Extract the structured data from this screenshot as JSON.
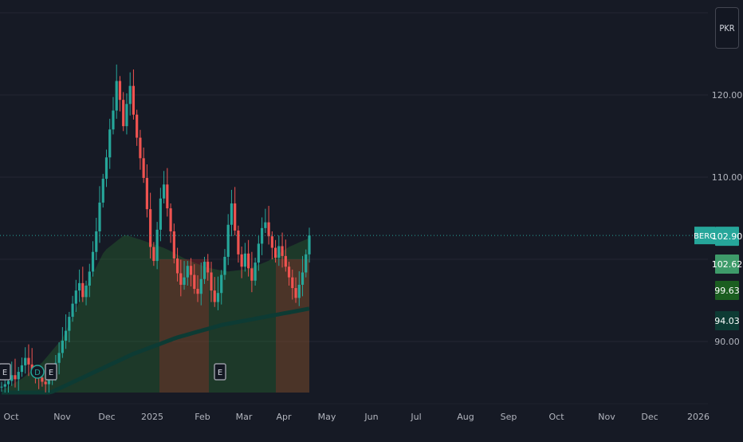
{
  "currency_button": "PKR",
  "colors": {
    "background": "#161a25",
    "grid": "#242733",
    "up": "#26a69a",
    "down": "#ef5350",
    "price_line": "#26a69a",
    "fast_ma": "#2e7d32",
    "slow_ma": "#0d3b34",
    "cloud_bull": "#2e7d32",
    "cloud_bear": "#c62828"
  },
  "price_labels": [
    {
      "name": "ticker",
      "text": "BERG",
      "bg": "#26a69a",
      "color": "#ffffff"
    },
    {
      "name": "last-price",
      "text": "102.90",
      "bg": "#26a69a",
      "color": "#ffffff",
      "value": 102.9
    },
    {
      "name": "fast-ma-value",
      "text": "102.62",
      "bg": "#3e9b6a",
      "color": "#ffffff",
      "value": 102.62
    },
    {
      "name": "mid-ma-value",
      "text": "99.63",
      "bg": "#1b5e20",
      "color": "#ffffff",
      "value": 99.63
    },
    {
      "name": "slow-ma-value",
      "text": "94.03",
      "bg": "#0d3b34",
      "color": "#ffffff",
      "value": 94.03
    }
  ],
  "event_markers": [
    {
      "label": "E",
      "month": "Oct",
      "shape": "square"
    },
    {
      "label": "D",
      "month": "Oct",
      "shape": "circle"
    },
    {
      "label": "E",
      "month": "Oct",
      "shape": "square"
    },
    {
      "label": "E",
      "month": "Feb",
      "shape": "square"
    }
  ],
  "chart_data": {
    "type": "candlestick",
    "y_axis": {
      "ticks": [
        "120.00",
        "110.00",
        "90.00"
      ],
      "range": [
        84,
        128
      ],
      "grid_values": [
        130,
        120,
        110,
        100,
        90
      ]
    },
    "x_axis": {
      "labels": [
        "Oct",
        "Nov",
        "Dec",
        "2025",
        "Feb",
        "Mar",
        "Apr",
        "May",
        "Jun",
        "Jul",
        "Aug",
        "Sep",
        "Oct",
        "Nov",
        "Dec",
        "2026"
      ]
    },
    "last_price": 102.9,
    "close_series": [
      84.5,
      84.8,
      85.2,
      85.9,
      85.4,
      86.3,
      87.1,
      88.0,
      87.2,
      86.5,
      85.9,
      85.6,
      85.1,
      84.8,
      85.3,
      86.2,
      87.4,
      88.6,
      90.1,
      91.3,
      93.0,
      94.6,
      96.2,
      97.1,
      95.4,
      96.8,
      98.5,
      100.9,
      103.4,
      106.9,
      109.8,
      112.4,
      115.8,
      118.1,
      121.7,
      119.4,
      116.2,
      118.9,
      121.1,
      117.6,
      114.8,
      112.3,
      109.9,
      106.1,
      101.5,
      99.8,
      103.6,
      107.4,
      109.1,
      106.2,
      103.4,
      100.1,
      98.3,
      96.9,
      97.8,
      99.2,
      98.1,
      96.4,
      95.8,
      97.6,
      99.7,
      98.4,
      96.2,
      94.8,
      95.9,
      98.1,
      100.3,
      104.2,
      106.8,
      103.5,
      100.6,
      99.1,
      100.7,
      98.9,
      97.4,
      99.6,
      101.9,
      103.8,
      104.5,
      102.8,
      101.4,
      100.2,
      101.6,
      100.4,
      99.1,
      97.8,
      96.5,
      95.3,
      96.9,
      98.4,
      100.6,
      102.9
    ],
    "fast_ma": [
      84.0,
      85.5,
      87.5,
      90.5,
      96.0,
      101.0,
      103.0,
      102.2,
      101.3,
      100.0,
      99.0,
      98.5,
      98.8,
      99.8,
      101.5,
      102.6
    ],
    "slow_ma": [
      80.0,
      83.5,
      86.0,
      88.5,
      90.5,
      92.0,
      93.0,
      94.0
    ]
  }
}
